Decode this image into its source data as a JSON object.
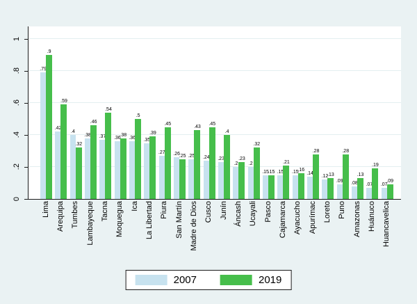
{
  "figure": {
    "background": "#eaf2f3"
  },
  "legend": {
    "items": [
      {
        "label": "2007",
        "color": "#c7e2ef"
      },
      {
        "label": "2019",
        "color": "#46be4b"
      }
    ]
  },
  "chart_data": {
    "type": "bar",
    "title": "",
    "xlabel": "",
    "ylabel": "",
    "categories": [
      "Lima",
      "Arequipa",
      "Tumbes",
      "Lambayeque",
      "Tacna",
      "Moquegua",
      "Ica",
      "La Libertad",
      "Piura",
      "San Martín",
      "Madre de Dios",
      "Cusco",
      "Junín",
      "Áncash",
      "Ucayali",
      "Pasco",
      "Cajamarca",
      "Ayacucho",
      "Apurímac",
      "Loreto",
      "Puno",
      "Amazonas",
      "Huánuco",
      "Huancavelica"
    ],
    "series": [
      {
        "name": "2007",
        "color": "#c7e2ef",
        "values": [
          0.79,
          0.42,
          0.4,
          0.38,
          0.37,
          0.36,
          0.36,
          0.35,
          0.27,
          0.26,
          0.25,
          0.24,
          0.23,
          0.2,
          0.2,
          0.15,
          0.15,
          0.15,
          0.14,
          0.12,
          0.09,
          0.08,
          0.07,
          0.07
        ],
        "labels": [
          ".79",
          ".42",
          ".4",
          ".38",
          ".37",
          ".36",
          ".36",
          ".35",
          ".27",
          ".26",
          ".25",
          ".24",
          ".23",
          ".2",
          ".2",
          ".15",
          ".15",
          ".15",
          ".14",
          ".12",
          ".09",
          ".08",
          ".07",
          ".07"
        ]
      },
      {
        "name": "2019",
        "color": "#46be4b",
        "values": [
          0.9,
          0.59,
          0.32,
          0.46,
          0.54,
          0.38,
          0.5,
          0.39,
          0.45,
          0.25,
          0.43,
          0.45,
          0.4,
          0.23,
          0.32,
          0.15,
          0.21,
          0.16,
          0.28,
          0.13,
          0.28,
          0.13,
          0.19,
          0.09
        ],
        "labels": [
          ".9",
          ".59",
          ".32",
          ".46",
          ".54",
          ".38",
          ".5",
          ".39",
          ".45",
          ".25",
          ".43",
          ".45",
          ".4",
          ".23",
          ".32",
          ".15",
          ".21",
          ".16",
          ".28",
          ".13",
          ".28",
          ".13",
          ".19",
          ".09"
        ]
      }
    ],
    "ylim": [
      0,
      1
    ],
    "yticks": [
      {
        "label": "0",
        "value": 0.0
      },
      {
        "label": ".2",
        "value": 0.2
      },
      {
        "label": ".4",
        "value": 0.4
      },
      {
        "label": ".6",
        "value": 0.6
      },
      {
        "label": ".8",
        "value": 0.8
      },
      {
        "label": "1",
        "value": 1.0
      }
    ],
    "grid": true,
    "bar_value_labels": true,
    "legend_position": "bottom",
    "tick_label_rotation": 90
  }
}
